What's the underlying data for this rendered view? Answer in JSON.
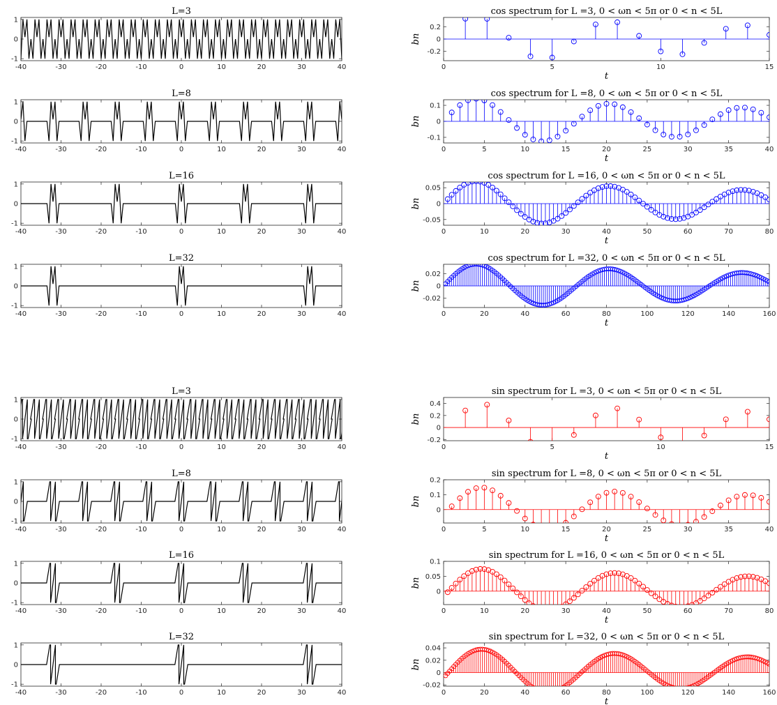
{
  "figure": {
    "tick_color": "#262626",
    "background": "#ffffff"
  },
  "chart_data": [
    {
      "id": "cos-time-L3",
      "group": "cos",
      "type": "line",
      "title": "L=3",
      "xlabel": "",
      "ylabel": "",
      "xlim": [
        -40,
        40
      ],
      "ylim": [
        -1.1,
        1.1
      ],
      "xticks": [
        -40,
        -30,
        -20,
        -10,
        0,
        10,
        20,
        30,
        40
      ],
      "yticks": [
        -1,
        0,
        1
      ],
      "color": "#000000",
      "L": 3,
      "kind": "cos-time"
    },
    {
      "id": "cos-spec-L3",
      "group": "cos",
      "type": "stem",
      "title": "cos spectrum for L =3, 0 < ωn < 5π or 0 < n < 5L",
      "xlabel": "t",
      "ylabel": "bn",
      "xlim": [
        0,
        15
      ],
      "ylim": [
        -0.35,
        0.35
      ],
      "xticks": [
        0,
        5,
        10,
        15
      ],
      "yticks": [
        -0.2,
        0,
        0.2
      ],
      "color": "#0000ff",
      "L": 3,
      "kind": "cos-spec"
    },
    {
      "id": "cos-time-L8",
      "group": "cos",
      "type": "line",
      "title": "L=8",
      "xlabel": "",
      "ylabel": "",
      "xlim": [
        -40,
        40
      ],
      "ylim": [
        -1.1,
        1.1
      ],
      "xticks": [
        -40,
        -30,
        -20,
        -10,
        0,
        10,
        20,
        30,
        40
      ],
      "yticks": [
        -1,
        0,
        1
      ],
      "color": "#000000",
      "L": 8,
      "kind": "cos-time"
    },
    {
      "id": "cos-spec-L8",
      "group": "cos",
      "type": "stem",
      "title": "cos spectrum for L =8, 0 < ωn < 5π or 0 < n < 5L",
      "xlabel": "t",
      "ylabel": "bn",
      "xlim": [
        0,
        40
      ],
      "ylim": [
        -0.135,
        0.135
      ],
      "xticks": [
        0,
        5,
        10,
        15,
        20,
        25,
        30,
        35,
        40
      ],
      "yticks": [
        -0.1,
        0,
        0.1
      ],
      "color": "#0000ff",
      "L": 8,
      "kind": "cos-spec"
    },
    {
      "id": "cos-time-L16",
      "group": "cos",
      "type": "line",
      "title": "L=16",
      "xlabel": "",
      "ylabel": "",
      "xlim": [
        -40,
        40
      ],
      "ylim": [
        -1.1,
        1.1
      ],
      "xticks": [
        -40,
        -30,
        -20,
        -10,
        0,
        10,
        20,
        30,
        40
      ],
      "yticks": [
        -1,
        0,
        1
      ],
      "color": "#000000",
      "L": 16,
      "kind": "cos-time"
    },
    {
      "id": "cos-spec-L16",
      "group": "cos",
      "type": "stem",
      "title": "cos spectrum for L =16, 0 < ωn < 5π or 0 < n < 5L",
      "xlabel": "t",
      "ylabel": "bn",
      "xlim": [
        0,
        80
      ],
      "ylim": [
        -0.068,
        0.068
      ],
      "xticks": [
        0,
        10,
        20,
        30,
        40,
        50,
        60,
        70,
        80
      ],
      "yticks": [
        -0.05,
        0,
        0.05
      ],
      "color": "#0000ff",
      "L": 16,
      "kind": "cos-spec"
    },
    {
      "id": "cos-time-L32",
      "group": "cos",
      "type": "line",
      "title": "L=32",
      "xlabel": "",
      "ylabel": "",
      "xlim": [
        -40,
        40
      ],
      "ylim": [
        -1.1,
        1.1
      ],
      "xticks": [
        -40,
        -30,
        -20,
        -10,
        0,
        10,
        20,
        30,
        40
      ],
      "yticks": [
        -1,
        0,
        1
      ],
      "color": "#000000",
      "L": 32,
      "kind": "cos-time"
    },
    {
      "id": "cos-spec-L32",
      "group": "cos",
      "type": "stem",
      "title": "cos spectrum for L =32, 0 < ωn < 5π or 0 < n < 5L",
      "xlabel": "t",
      "ylabel": "bn",
      "xlim": [
        0,
        160
      ],
      "ylim": [
        -0.035,
        0.035
      ],
      "xticks": [
        0,
        20,
        40,
        60,
        80,
        100,
        120,
        140,
        160
      ],
      "yticks": [
        -0.02,
        0,
        0.02
      ],
      "color": "#0000ff",
      "L": 32,
      "kind": "cos-spec"
    },
    {
      "id": "sin-time-L3",
      "group": "sin",
      "type": "line",
      "title": "L=3",
      "xlabel": "",
      "ylabel": "",
      "xlim": [
        -40,
        40
      ],
      "ylim": [
        -1.1,
        1.1
      ],
      "xticks": [
        -40,
        -30,
        -20,
        -10,
        0,
        10,
        20,
        30,
        40
      ],
      "yticks": [
        -1,
        0,
        1
      ],
      "color": "#000000",
      "L": 3,
      "kind": "sin-time"
    },
    {
      "id": "sin-spec-L3",
      "group": "sin",
      "type": "stem",
      "title": "sin spectrum for L =3, 0 < ωn < 5π or 0 < n < 5L",
      "xlabel": "t",
      "ylabel": "bn",
      "xlim": [
        0,
        15
      ],
      "ylim": [
        -0.22,
        0.5
      ],
      "xticks": [
        0,
        5,
        10,
        15
      ],
      "yticks": [
        -0.2,
        0,
        0.2,
        0.4
      ],
      "color": "#ff0000",
      "L": 3,
      "kind": "sin-spec"
    },
    {
      "id": "sin-time-L8",
      "group": "sin",
      "type": "line",
      "title": "L=8",
      "xlabel": "",
      "ylabel": "",
      "xlim": [
        -40,
        40
      ],
      "ylim": [
        -1.1,
        1.1
      ],
      "xticks": [
        -40,
        -30,
        -20,
        -10,
        0,
        10,
        20,
        30,
        40
      ],
      "yticks": [
        -1,
        0,
        1
      ],
      "color": "#000000",
      "L": 8,
      "kind": "sin-time"
    },
    {
      "id": "sin-spec-L8",
      "group": "sin",
      "type": "stem",
      "title": "sin spectrum for L =8, 0 < ωn < 5π or 0 < n < 5L",
      "xlabel": "t",
      "ylabel": "bn",
      "xlim": [
        0,
        40
      ],
      "ylim": [
        -0.09,
        0.2
      ],
      "xticks": [
        0,
        5,
        10,
        15,
        20,
        25,
        30,
        35,
        40
      ],
      "yticks": [
        0,
        0.1,
        0.2
      ],
      "color": "#ff0000",
      "L": 8,
      "kind": "sin-spec"
    },
    {
      "id": "sin-time-L16",
      "group": "sin",
      "type": "line",
      "title": "L=16",
      "xlabel": "",
      "ylabel": "",
      "xlim": [
        -40,
        40
      ],
      "ylim": [
        -1.1,
        1.1
      ],
      "xticks": [
        -40,
        -30,
        -20,
        -10,
        0,
        10,
        20,
        30,
        40
      ],
      "yticks": [
        -1,
        0,
        1
      ],
      "color": "#000000",
      "L": 16,
      "kind": "sin-time"
    },
    {
      "id": "sin-spec-L16",
      "group": "sin",
      "type": "stem",
      "title": "sin spectrum for L =16, 0 < ωn < 5π or 0 < n < 5L",
      "xlabel": "t",
      "ylabel": "bn",
      "xlim": [
        0,
        80
      ],
      "ylim": [
        -0.045,
        0.1
      ],
      "xticks": [
        0,
        10,
        20,
        30,
        40,
        50,
        60,
        70,
        80
      ],
      "yticks": [
        0,
        0.05,
        0.1
      ],
      "color": "#ff0000",
      "L": 16,
      "kind": "sin-spec"
    },
    {
      "id": "sin-time-L32",
      "group": "sin",
      "type": "line",
      "title": "L=32",
      "xlabel": "",
      "ylabel": "",
      "xlim": [
        -40,
        40
      ],
      "ylim": [
        -1.1,
        1.1
      ],
      "xticks": [
        -40,
        -30,
        -20,
        -10,
        0,
        10,
        20,
        30,
        40
      ],
      "yticks": [
        -1,
        0,
        1
      ],
      "color": "#000000",
      "L": 32,
      "kind": "sin-time"
    },
    {
      "id": "sin-spec-L32",
      "group": "sin",
      "type": "stem",
      "title": "sin spectrum for L =32, 0 < ωn < 5π or 0 < n < 5L",
      "xlabel": "t",
      "ylabel": "bn",
      "xlim": [
        0,
        160
      ],
      "ylim": [
        -0.022,
        0.048
      ],
      "xticks": [
        0,
        20,
        40,
        60,
        80,
        100,
        120,
        140,
        160
      ],
      "yticks": [
        -0.02,
        0,
        0.02,
        0.04
      ],
      "color": "#ff0000",
      "L": 32,
      "kind": "sin-spec"
    }
  ]
}
